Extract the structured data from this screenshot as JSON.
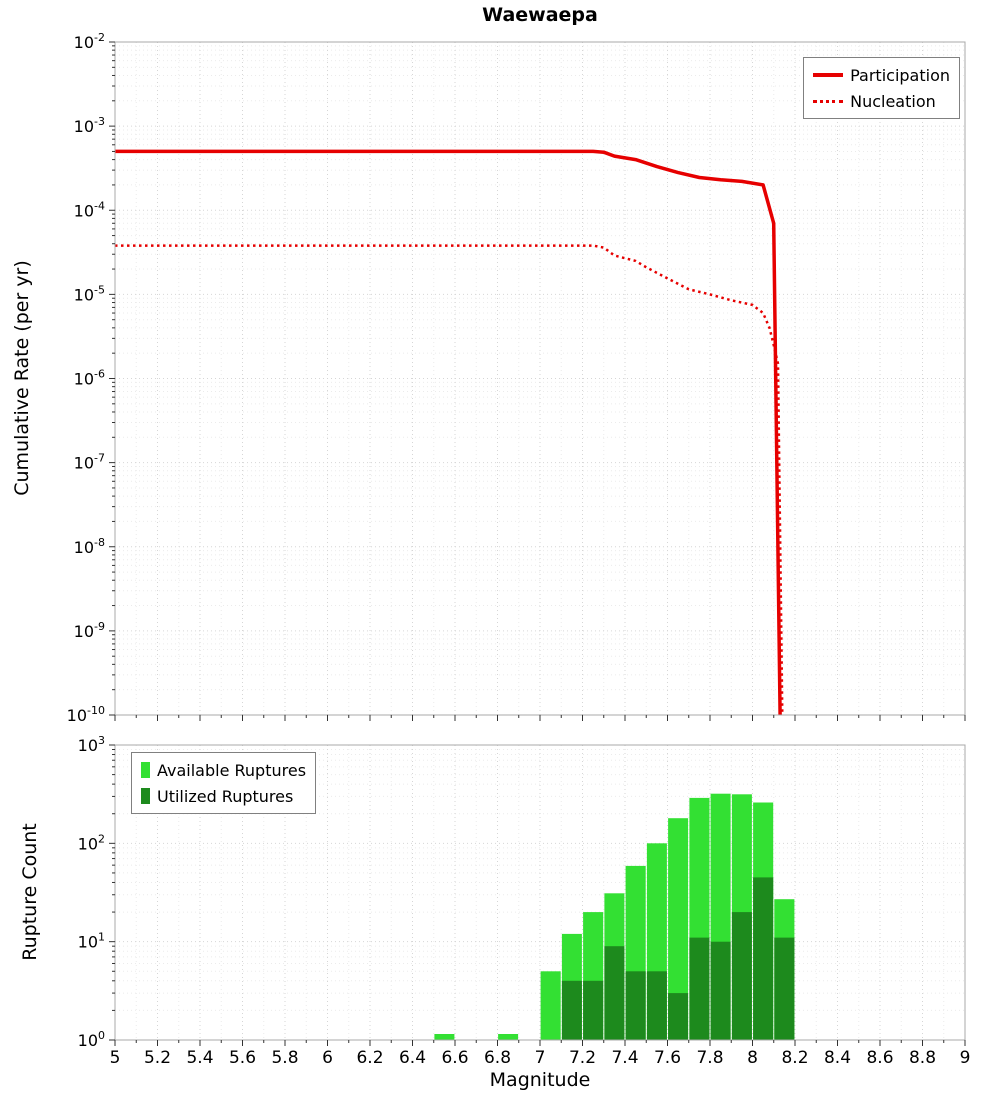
{
  "title": "Waewaepa",
  "x_axis": {
    "label": "Magnitude",
    "min": 5,
    "max": 9,
    "tick_step": 0.2,
    "tick_labels": [
      "5",
      "5.2",
      "5.4",
      "5.6",
      "5.8",
      "6",
      "6.2",
      "6.4",
      "6.6",
      "6.8",
      "7",
      "7.2",
      "7.4",
      "7.6",
      "7.8",
      "8",
      "8.2",
      "8.4",
      "8.6",
      "8.8",
      "9"
    ]
  },
  "top_chart": {
    "ylabel": "Cumulative Rate (per yr)",
    "y_tick_exponents": [
      -2,
      -3,
      -4,
      -5,
      -6,
      -7,
      -8,
      -9,
      -10
    ]
  },
  "bottom_chart": {
    "ylabel": "Rupture Count",
    "y_tick_exponents": [
      3,
      2,
      1,
      0
    ]
  },
  "chart_data": [
    {
      "type": "line",
      "title": "Waewaepa",
      "xlabel": "Magnitude",
      "ylabel": "Cumulative Rate (per yr)",
      "xlim": [
        5,
        9
      ],
      "ylim": [
        1e-10,
        0.01
      ],
      "yscale": "log",
      "grid": true,
      "legend_position": "top-right",
      "series": [
        {
          "name": "Participation",
          "style": "solid",
          "color": "#e60000",
          "points": [
            [
              5.0,
              0.0005
            ],
            [
              7.25,
              0.0005
            ],
            [
              7.3,
              0.00049
            ],
            [
              7.35,
              0.00044
            ],
            [
              7.45,
              0.0004
            ],
            [
              7.55,
              0.00033
            ],
            [
              7.65,
              0.00028
            ],
            [
              7.75,
              0.000245
            ],
            [
              7.85,
              0.00023
            ],
            [
              7.95,
              0.00022
            ],
            [
              8.05,
              0.0002
            ],
            [
              8.1,
              7e-05
            ],
            [
              8.13,
              1e-10
            ]
          ]
        },
        {
          "name": "Nucleation",
          "style": "dotted",
          "color": "#e60000",
          "points": [
            [
              5.0,
              3.8e-05
            ],
            [
              7.25,
              3.8e-05
            ],
            [
              7.3,
              3.6e-05
            ],
            [
              7.35,
              2.9e-05
            ],
            [
              7.45,
              2.5e-05
            ],
            [
              7.5,
              2.1e-05
            ],
            [
              7.6,
              1.55e-05
            ],
            [
              7.7,
              1.15e-05
            ],
            [
              7.8,
              1e-05
            ],
            [
              7.9,
              8.5e-06
            ],
            [
              8.0,
              7.5e-06
            ],
            [
              8.05,
              6e-06
            ],
            [
              8.08,
              4e-06
            ],
            [
              8.1,
              2.5e-06
            ],
            [
              8.12,
              1.5e-06
            ],
            [
              8.14,
              1e-10
            ]
          ]
        }
      ]
    },
    {
      "type": "bar",
      "xlabel": "Magnitude",
      "ylabel": "Rupture Count",
      "xlim": [
        5,
        9
      ],
      "ylim": [
        1,
        1000
      ],
      "yscale": "log",
      "grid": true,
      "legend_position": "top-left",
      "bin_width": 0.1,
      "series": [
        {
          "name": "Available Ruptures",
          "color": "#33e033",
          "bins": [
            [
              6.55,
              1
            ],
            [
              6.85,
              1
            ],
            [
              7.05,
              5
            ],
            [
              7.15,
              12
            ],
            [
              7.25,
              20
            ],
            [
              7.35,
              31
            ],
            [
              7.45,
              59
            ],
            [
              7.55,
              100
            ],
            [
              7.65,
              180
            ],
            [
              7.75,
              290
            ],
            [
              7.85,
              320
            ],
            [
              7.95,
              315
            ],
            [
              8.05,
              260
            ],
            [
              8.15,
              27
            ]
          ]
        },
        {
          "name": "Utilized Ruptures",
          "color": "#1d8a1d",
          "bins": [
            [
              7.15,
              4
            ],
            [
              7.25,
              4
            ],
            [
              7.35,
              9
            ],
            [
              7.45,
              5
            ],
            [
              7.55,
              5
            ],
            [
              7.65,
              3
            ],
            [
              7.75,
              11
            ],
            [
              7.85,
              10
            ],
            [
              7.95,
              20
            ],
            [
              8.05,
              45
            ],
            [
              8.15,
              11
            ]
          ]
        }
      ]
    }
  ]
}
